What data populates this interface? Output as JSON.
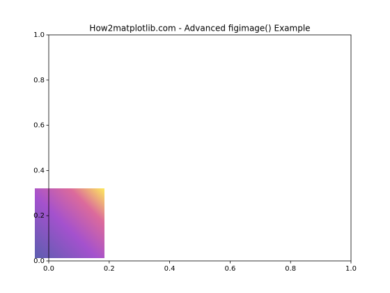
{
  "chart_data": {
    "type": "image",
    "title": "How2matplotlib.com - Advanced figimage() Example",
    "xlim": [
      0,
      1
    ],
    "ylim": [
      0,
      1
    ],
    "xticks": [
      {
        "value": 0,
        "label": "0.0"
      },
      0.2,
      0.4,
      0.6,
      0.8,
      {
        "value": 1,
        "label": "1.0"
      }
    ],
    "yticks": [
      {
        "value": 0,
        "label": "0.0"
      },
      0.2,
      0.4,
      0.6,
      0.8,
      {
        "value": 1,
        "label": "1.0"
      }
    ]
  }
}
